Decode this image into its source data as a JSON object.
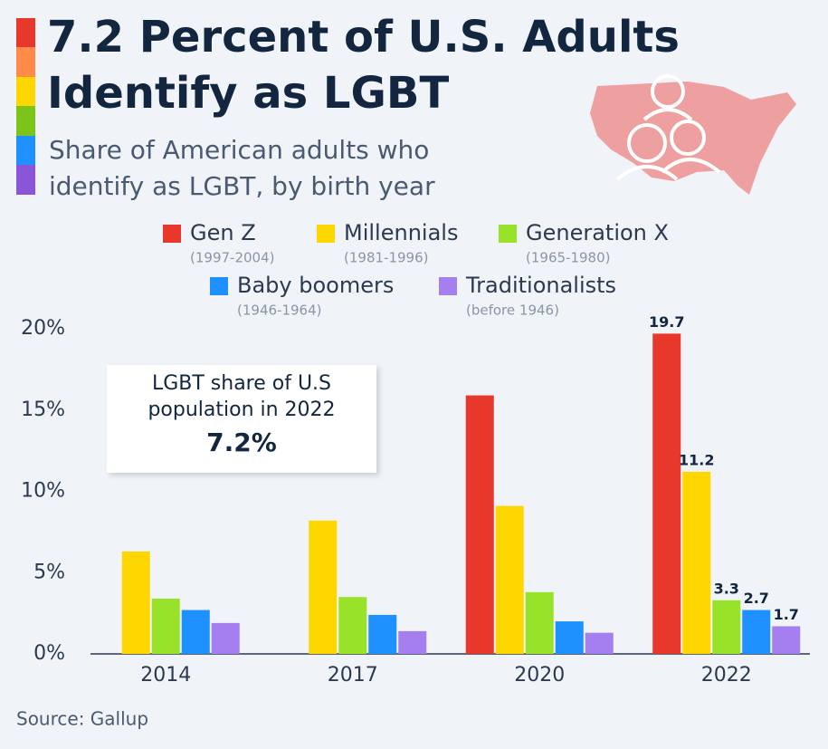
{
  "chart_data": {
    "type": "bar",
    "title": "7.2 Percent of U.S. Adults Identify as LGBT",
    "subtitle": "Share of American adults who identify as LGBT, by birth year",
    "source": "Source: Gallup",
    "annotation": {
      "lines": [
        "LGBT share of U.S",
        "population in 2022"
      ],
      "value": "7.2%"
    },
    "categories": [
      "2014",
      "2017",
      "2020",
      "2022"
    ],
    "series": [
      {
        "name": "Gen Z",
        "years": "(1997-2004)",
        "color": "#e8372b",
        "values": [
          null,
          null,
          15.9,
          19.7
        ],
        "value_labels": [
          null,
          null,
          null,
          "19.7"
        ]
      },
      {
        "name": "Millennials",
        "years": "(1981-1996)",
        "color": "#fed600",
        "values": [
          6.3,
          8.2,
          9.1,
          11.2
        ],
        "value_labels": [
          null,
          null,
          null,
          "11.2"
        ]
      },
      {
        "name": "Generation X",
        "years": "(1965-1980)",
        "color": "#99e22a",
        "values": [
          3.4,
          3.5,
          3.8,
          3.3
        ],
        "value_labels": [
          null,
          null,
          null,
          "3.3"
        ]
      },
      {
        "name": "Baby boomers",
        "years": "(1946-1964)",
        "color": "#1e90ff",
        "values": [
          2.7,
          2.4,
          2.0,
          2.7
        ],
        "value_labels": [
          null,
          null,
          null,
          "2.7"
        ]
      },
      {
        "name": "Traditionalists",
        "years": "(before 1946)",
        "color": "#a57ff0",
        "values": [
          1.9,
          1.4,
          1.3,
          1.7
        ],
        "value_labels": [
          null,
          null,
          null,
          "1.7"
        ]
      }
    ],
    "ylim": [
      0,
      20
    ],
    "yticks": [
      {
        "value": 0,
        "label": "0%"
      },
      {
        "value": 5,
        "label": "5%"
      },
      {
        "value": 10,
        "label": "10%"
      },
      {
        "value": 15,
        "label": "15%"
      },
      {
        "value": 20,
        "label": "20%"
      }
    ],
    "grid": false
  }
}
